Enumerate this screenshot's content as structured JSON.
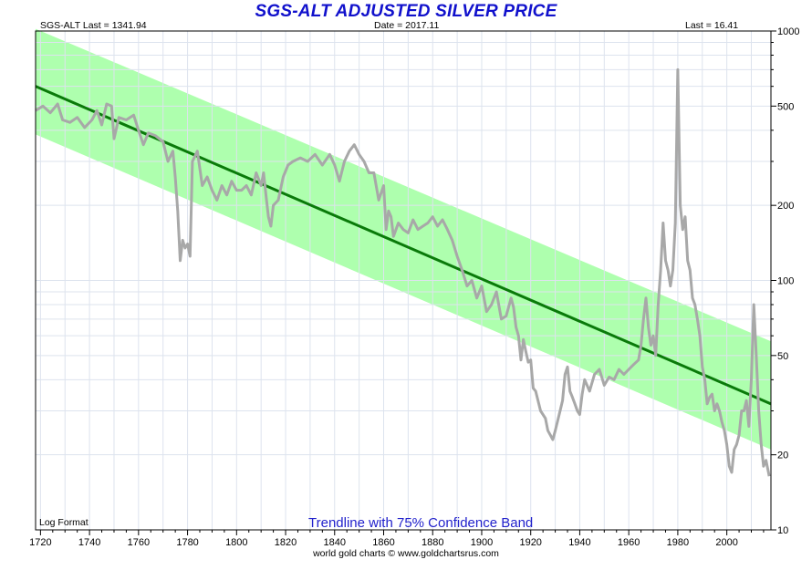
{
  "header": {
    "title": "SGS-ALT ADJUSTED  SILVER PRICE",
    "last_left": "SGS-ALT Last = 1341.94",
    "date": "Date = 2017.11",
    "last_right": "Last = 16.41"
  },
  "log_format_label": "Log Format",
  "band_label": "Trendline with 75% Confidence Band",
  "footer": "world gold charts © www.goldchartsrus.com",
  "colors": {
    "series": "#a8a8a8",
    "trendline": "#0a7a0a",
    "band": "#aeffae",
    "title": "#1111cc",
    "band_label": "#2222cc"
  },
  "chart_data": {
    "type": "line",
    "title": "SGS-ALT ADJUSTED  SILVER PRICE",
    "xlim": [
      1718,
      2018
    ],
    "ylim": [
      10,
      1000
    ],
    "y_scale": "log",
    "x_ticks": [
      1720,
      1740,
      1760,
      1780,
      1800,
      1820,
      1840,
      1860,
      1880,
      1900,
      1920,
      1940,
      1960,
      1980,
      2000
    ],
    "y_ticks": [
      1000,
      500,
      200,
      100,
      50,
      20,
      10
    ],
    "grid": true,
    "y_axis_side": "right",
    "trendline": {
      "name": "Trendline",
      "start": [
        1718,
        600
      ],
      "end": [
        2018,
        32
      ]
    },
    "confidence_band": {
      "name": "75% Confidence Band",
      "upper": [
        [
          1718,
          1020
        ],
        [
          2018,
          57
        ]
      ],
      "lower": [
        [
          1718,
          385
        ],
        [
          2018,
          21
        ]
      ]
    },
    "series": [
      {
        "name": "SGS-ALT Adjusted Silver Price",
        "points": [
          [
            1718,
            480
          ],
          [
            1721,
            500
          ],
          [
            1724,
            470
          ],
          [
            1727,
            510
          ],
          [
            1729,
            440
          ],
          [
            1732,
            430
          ],
          [
            1735,
            450
          ],
          [
            1738,
            410
          ],
          [
            1741,
            440
          ],
          [
            1743,
            480
          ],
          [
            1745,
            420
          ],
          [
            1747,
            510
          ],
          [
            1749,
            500
          ],
          [
            1750,
            370
          ],
          [
            1752,
            450
          ],
          [
            1755,
            440
          ],
          [
            1758,
            460
          ],
          [
            1760,
            400
          ],
          [
            1762,
            350
          ],
          [
            1764,
            390
          ],
          [
            1767,
            380
          ],
          [
            1770,
            360
          ],
          [
            1772,
            300
          ],
          [
            1774,
            330
          ],
          [
            1775,
            260
          ],
          [
            1776,
            190
          ],
          [
            1777,
            120
          ],
          [
            1778,
            145
          ],
          [
            1779,
            135
          ],
          [
            1780,
            140
          ],
          [
            1781,
            125
          ],
          [
            1782,
            300
          ],
          [
            1784,
            330
          ],
          [
            1786,
            240
          ],
          [
            1788,
            260
          ],
          [
            1790,
            230
          ],
          [
            1792,
            210
          ],
          [
            1794,
            240
          ],
          [
            1796,
            220
          ],
          [
            1798,
            250
          ],
          [
            1800,
            230
          ],
          [
            1802,
            230
          ],
          [
            1804,
            240
          ],
          [
            1806,
            220
          ],
          [
            1808,
            270
          ],
          [
            1810,
            240
          ],
          [
            1811,
            270
          ],
          [
            1812,
            220
          ],
          [
            1813,
            180
          ],
          [
            1814,
            165
          ],
          [
            1815,
            200
          ],
          [
            1817,
            210
          ],
          [
            1819,
            260
          ],
          [
            1821,
            290
          ],
          [
            1823,
            300
          ],
          [
            1826,
            310
          ],
          [
            1829,
            300
          ],
          [
            1832,
            320
          ],
          [
            1835,
            290
          ],
          [
            1838,
            320
          ],
          [
            1840,
            290
          ],
          [
            1842,
            250
          ],
          [
            1844,
            300
          ],
          [
            1846,
            330
          ],
          [
            1848,
            350
          ],
          [
            1850,
            320
          ],
          [
            1852,
            300
          ],
          [
            1854,
            270
          ],
          [
            1856,
            270
          ],
          [
            1858,
            210
          ],
          [
            1860,
            240
          ],
          [
            1861,
            160
          ],
          [
            1862,
            190
          ],
          [
            1863,
            180
          ],
          [
            1864,
            150
          ],
          [
            1866,
            170
          ],
          [
            1868,
            160
          ],
          [
            1870,
            155
          ],
          [
            1872,
            175
          ],
          [
            1874,
            160
          ],
          [
            1876,
            165
          ],
          [
            1878,
            170
          ],
          [
            1880,
            180
          ],
          [
            1882,
            165
          ],
          [
            1884,
            175
          ],
          [
            1886,
            160
          ],
          [
            1888,
            145
          ],
          [
            1890,
            125
          ],
          [
            1892,
            110
          ],
          [
            1894,
            95
          ],
          [
            1896,
            100
          ],
          [
            1898,
            85
          ],
          [
            1900,
            95
          ],
          [
            1902,
            75
          ],
          [
            1904,
            80
          ],
          [
            1906,
            90
          ],
          [
            1908,
            70
          ],
          [
            1910,
            72
          ],
          [
            1912,
            85
          ],
          [
            1913,
            78
          ],
          [
            1914,
            65
          ],
          [
            1915,
            60
          ],
          [
            1916,
            48
          ],
          [
            1917,
            58
          ],
          [
            1918,
            52
          ],
          [
            1919,
            47
          ],
          [
            1920,
            48
          ],
          [
            1921,
            37
          ],
          [
            1922,
            36
          ],
          [
            1924,
            30
          ],
          [
            1926,
            28
          ],
          [
            1927,
            25
          ],
          [
            1928,
            24
          ],
          [
            1929,
            23
          ],
          [
            1930,
            25
          ],
          [
            1932,
            30
          ],
          [
            1933,
            33
          ],
          [
            1934,
            42
          ],
          [
            1935,
            45
          ],
          [
            1936,
            36
          ],
          [
            1937,
            34
          ],
          [
            1938,
            32
          ],
          [
            1939,
            30
          ],
          [
            1940,
            29
          ],
          [
            1941,
            35
          ],
          [
            1942,
            40
          ],
          [
            1944,
            36
          ],
          [
            1946,
            42
          ],
          [
            1948,
            44
          ],
          [
            1950,
            38
          ],
          [
            1952,
            41
          ],
          [
            1954,
            40
          ],
          [
            1956,
            44
          ],
          [
            1958,
            42
          ],
          [
            1960,
            44
          ],
          [
            1962,
            46
          ],
          [
            1964,
            48
          ],
          [
            1965,
            55
          ],
          [
            1966,
            70
          ],
          [
            1967,
            85
          ],
          [
            1968,
            65
          ],
          [
            1969,
            55
          ],
          [
            1970,
            60
          ],
          [
            1971,
            50
          ],
          [
            1972,
            80
          ],
          [
            1973,
            110
          ],
          [
            1974,
            170
          ],
          [
            1975,
            120
          ],
          [
            1976,
            110
          ],
          [
            1977,
            95
          ],
          [
            1978,
            110
          ],
          [
            1979,
            170
          ],
          [
            1980,
            700
          ],
          [
            1981,
            200
          ],
          [
            1982,
            160
          ],
          [
            1983,
            180
          ],
          [
            1984,
            120
          ],
          [
            1985,
            110
          ],
          [
            1986,
            85
          ],
          [
            1987,
            80
          ],
          [
            1988,
            70
          ],
          [
            1989,
            60
          ],
          [
            1990,
            45
          ],
          [
            1991,
            40
          ],
          [
            1992,
            32
          ],
          [
            1993,
            34
          ],
          [
            1994,
            35
          ],
          [
            1995,
            30
          ],
          [
            1996,
            32
          ],
          [
            1997,
            30
          ],
          [
            1998,
            27
          ],
          [
            1999,
            25
          ],
          [
            2000,
            22
          ],
          [
            2001,
            18
          ],
          [
            2002,
            17
          ],
          [
            2003,
            21
          ],
          [
            2004,
            22
          ],
          [
            2005,
            24
          ],
          [
            2006,
            30
          ],
          [
            2007,
            30
          ],
          [
            2008,
            33
          ],
          [
            2009,
            26
          ],
          [
            2010,
            40
          ],
          [
            2011,
            80
          ],
          [
            2012,
            50
          ],
          [
            2013,
            30
          ],
          [
            2014,
            22
          ],
          [
            2015,
            18
          ],
          [
            2016,
            19
          ],
          [
            2017,
            17
          ],
          [
            2017.3,
            16.41
          ]
        ]
      }
    ]
  }
}
